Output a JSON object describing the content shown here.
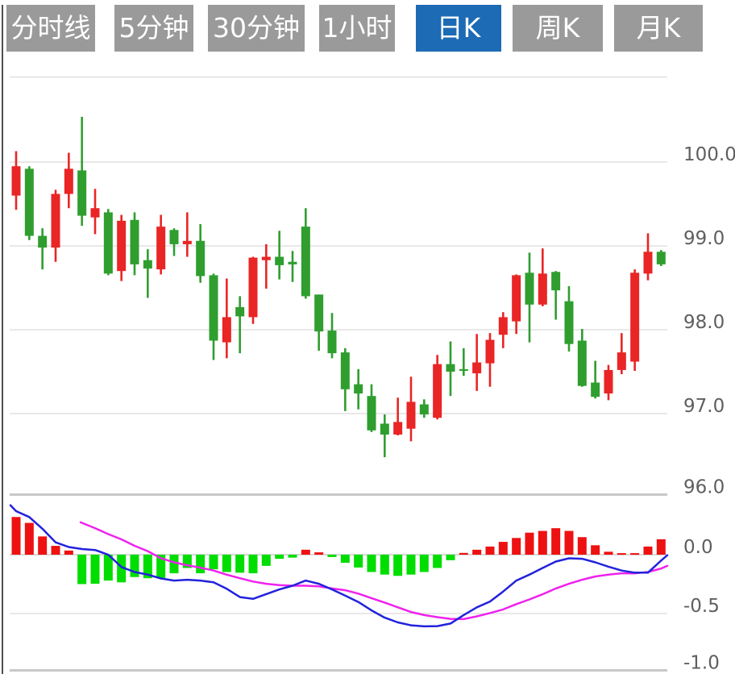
{
  "tabs": {
    "items": [
      {
        "label": "分时线",
        "active": false
      },
      {
        "label": "5分钟",
        "active": false
      },
      {
        "label": "30分钟",
        "active": false
      },
      {
        "label": "1小时",
        "active": false
      },
      {
        "label": "日K",
        "active": true
      },
      {
        "label": "周K",
        "active": false
      },
      {
        "label": "月K",
        "active": false
      }
    ]
  },
  "colors": {
    "tab_bg": "#9a9a9a",
    "tab_active_bg": "#1d6bb4",
    "tab_text": "#ffffff",
    "candle_up": "#e92525",
    "candle_down": "#2f9e2f",
    "hist_up": "#ee1111",
    "hist_down": "#00dd00",
    "dif_line": "#2222dd",
    "dea_line": "#ee22ee",
    "grid": "#e0e0e0",
    "divider": "#c8c8c8",
    "axis_text": "#5f5f5f",
    "frame": "#4f4f4f"
  },
  "chart_data": [
    {
      "type": "candlestick",
      "timeframe_label": "日K",
      "legend_position": "none",
      "grid": true,
      "ylim": [
        95.9,
        100.6
      ],
      "yticks": [
        {
          "value": 100.0,
          "label": "100.0"
        },
        {
          "value": 99.0,
          "label": "99.0"
        },
        {
          "value": 98.0,
          "label": "98.0"
        },
        {
          "value": 97.0,
          "label": "97.0"
        },
        {
          "value": 96.0,
          "label": "96.0"
        }
      ],
      "ohlc": [
        [
          99.6,
          100.13,
          99.43,
          99.95
        ],
        [
          99.92,
          99.95,
          99.07,
          99.12
        ],
        [
          99.12,
          99.21,
          98.72,
          98.98
        ],
        [
          98.98,
          99.67,
          98.81,
          99.62
        ],
        [
          99.62,
          100.11,
          99.45,
          99.92
        ],
        [
          99.9,
          100.54,
          99.24,
          99.36
        ],
        [
          99.34,
          99.68,
          99.14,
          99.45
        ],
        [
          99.4,
          99.44,
          98.65,
          98.67
        ],
        [
          98.7,
          99.37,
          98.58,
          99.3
        ],
        [
          99.31,
          99.4,
          98.65,
          98.78
        ],
        [
          98.83,
          98.96,
          98.38,
          98.73
        ],
        [
          98.72,
          99.37,
          98.66,
          99.23
        ],
        [
          99.19,
          99.21,
          98.88,
          99.02
        ],
        [
          99.02,
          99.4,
          98.87,
          99.06
        ],
        [
          99.06,
          99.26,
          98.56,
          98.64
        ],
        [
          98.65,
          98.67,
          97.64,
          97.87
        ],
        [
          97.85,
          98.61,
          97.66,
          98.15
        ],
        [
          98.27,
          98.4,
          97.72,
          98.16
        ],
        [
          98.15,
          98.87,
          98.07,
          98.86
        ],
        [
          98.83,
          99.02,
          98.49,
          98.87
        ],
        [
          98.87,
          99.18,
          98.6,
          98.77
        ],
        [
          98.81,
          98.94,
          98.57,
          98.78
        ],
        [
          99.23,
          99.45,
          98.37,
          98.4
        ],
        [
          98.42,
          98.42,
          97.75,
          97.98
        ],
        [
          97.99,
          98.2,
          97.66,
          97.72
        ],
        [
          97.73,
          97.78,
          97.03,
          97.29
        ],
        [
          97.35,
          97.53,
          97.05,
          97.24
        ],
        [
          97.21,
          97.35,
          96.78,
          96.8
        ],
        [
          96.88,
          96.99,
          96.48,
          96.75
        ],
        [
          96.75,
          97.19,
          96.74,
          96.9
        ],
        [
          96.82,
          97.44,
          96.67,
          97.14
        ],
        [
          97.11,
          97.17,
          96.95,
          96.99
        ],
        [
          96.95,
          97.7,
          96.93,
          97.59
        ],
        [
          97.59,
          97.86,
          97.21,
          97.5
        ],
        [
          97.53,
          97.78,
          97.45,
          97.51
        ],
        [
          97.48,
          97.95,
          97.27,
          97.61
        ],
        [
          97.6,
          97.96,
          97.32,
          97.88
        ],
        [
          97.94,
          98.21,
          97.78,
          98.15
        ],
        [
          98.1,
          98.66,
          97.95,
          98.65
        ],
        [
          98.68,
          98.92,
          97.85,
          98.3
        ],
        [
          98.3,
          98.97,
          98.28,
          98.67
        ],
        [
          98.69,
          98.7,
          98.12,
          98.47
        ],
        [
          98.34,
          98.52,
          97.74,
          97.83
        ],
        [
          97.87,
          98.01,
          97.32,
          97.33
        ],
        [
          97.37,
          97.63,
          97.18,
          97.2
        ],
        [
          97.24,
          97.58,
          97.16,
          97.52
        ],
        [
          97.52,
          97.96,
          97.47,
          97.73
        ],
        [
          97.62,
          98.72,
          97.51,
          98.68
        ],
        [
          98.67,
          99.15,
          98.59,
          98.93
        ],
        [
          98.93,
          98.95,
          98.76,
          98.78
        ]
      ]
    },
    {
      "type": "macd",
      "grid": true,
      "ylim": [
        -1.0,
        0.5
      ],
      "yticks": [
        {
          "value": 0.0,
          "label": "0.0"
        },
        {
          "value": -0.5,
          "label": "-0.5"
        },
        {
          "value": -1.0,
          "label": "-1.0"
        }
      ],
      "histogram": [
        0.32,
        0.27,
        0.155,
        0.075,
        0.035,
        -0.25,
        -0.247,
        -0.22,
        -0.235,
        -0.19,
        -0.2,
        -0.198,
        -0.158,
        -0.113,
        -0.158,
        -0.124,
        -0.147,
        -0.153,
        -0.158,
        -0.095,
        -0.035,
        -0.025,
        0.042,
        0.02,
        -0.02,
        -0.069,
        -0.109,
        -0.147,
        -0.169,
        -0.18,
        -0.169,
        -0.147,
        -0.113,
        -0.047,
        0.015,
        0.042,
        0.069,
        0.109,
        0.142,
        0.187,
        0.202,
        0.225,
        0.202,
        0.149,
        0.08,
        0.025,
        0.013,
        0.013,
        0.069,
        0.131
      ],
      "dif": [
        [
          -0.43,
          0.42
        ],
        [
          0,
          0.37
        ],
        [
          1,
          0.32
        ],
        [
          2,
          0.22
        ],
        [
          3,
          0.105
        ],
        [
          4,
          0.065
        ],
        [
          5,
          0.048
        ],
        [
          6,
          0.04
        ],
        [
          7,
          0.0
        ],
        [
          8,
          -0.105
        ],
        [
          9,
          -0.147
        ],
        [
          10,
          -0.169
        ],
        [
          11,
          -0.202
        ],
        [
          12,
          -0.22
        ],
        [
          13,
          -0.213
        ],
        [
          14,
          -0.22
        ],
        [
          15,
          -0.235
        ],
        [
          16,
          -0.29
        ],
        [
          17,
          -0.36
        ],
        [
          18,
          -0.375
        ],
        [
          19,
          -0.335
        ],
        [
          20,
          -0.295
        ],
        [
          21,
          -0.264
        ],
        [
          22,
          -0.22
        ],
        [
          23,
          -0.247
        ],
        [
          24,
          -0.295
        ],
        [
          25,
          -0.347
        ],
        [
          26,
          -0.402
        ],
        [
          27,
          -0.473
        ],
        [
          28,
          -0.535
        ],
        [
          29,
          -0.575
        ],
        [
          30,
          -0.6
        ],
        [
          31,
          -0.609
        ],
        [
          32,
          -0.607
        ],
        [
          33,
          -0.585
        ],
        [
          34,
          -0.513
        ],
        [
          35,
          -0.447
        ],
        [
          36,
          -0.398
        ],
        [
          37,
          -0.313
        ],
        [
          38,
          -0.22
        ],
        [
          39,
          -0.169
        ],
        [
          40,
          -0.113
        ],
        [
          41,
          -0.058
        ],
        [
          42,
          -0.031
        ],
        [
          43,
          -0.035
        ],
        [
          44,
          -0.065
        ],
        [
          45,
          -0.102
        ],
        [
          46,
          -0.135
        ],
        [
          47,
          -0.153
        ],
        [
          48,
          -0.153
        ],
        [
          49,
          -0.05
        ],
        [
          49.47,
          -0.005
        ]
      ],
      "dea": [
        [
          4.9,
          0.275
        ],
        [
          6,
          0.225
        ],
        [
          7,
          0.175
        ],
        [
          8,
          0.13
        ],
        [
          9,
          0.075
        ],
        [
          10,
          0.03
        ],
        [
          11,
          -0.03
        ],
        [
          12,
          -0.065
        ],
        [
          13,
          -0.09
        ],
        [
          14,
          -0.11
        ],
        [
          15,
          -0.135
        ],
        [
          16,
          -0.17
        ],
        [
          17,
          -0.2
        ],
        [
          18,
          -0.228
        ],
        [
          19,
          -0.247
        ],
        [
          20,
          -0.258
        ],
        [
          21,
          -0.264
        ],
        [
          22,
          -0.264
        ],
        [
          23,
          -0.269
        ],
        [
          24,
          -0.287
        ],
        [
          25,
          -0.302
        ],
        [
          26,
          -0.331
        ],
        [
          27,
          -0.369
        ],
        [
          28,
          -0.407
        ],
        [
          29,
          -0.447
        ],
        [
          30,
          -0.487
        ],
        [
          31,
          -0.513
        ],
        [
          32,
          -0.531
        ],
        [
          33,
          -0.545
        ],
        [
          34,
          -0.547
        ],
        [
          35,
          -0.524
        ],
        [
          36,
          -0.496
        ],
        [
          37,
          -0.465
        ],
        [
          38,
          -0.42
        ],
        [
          39,
          -0.38
        ],
        [
          40,
          -0.336
        ],
        [
          41,
          -0.287
        ],
        [
          42,
          -0.247
        ],
        [
          43,
          -0.213
        ],
        [
          44,
          -0.185
        ],
        [
          45,
          -0.169
        ],
        [
          46,
          -0.158
        ],
        [
          47,
          -0.158
        ],
        [
          48,
          -0.147
        ],
        [
          49,
          -0.118
        ],
        [
          49.47,
          -0.095
        ]
      ]
    }
  ]
}
